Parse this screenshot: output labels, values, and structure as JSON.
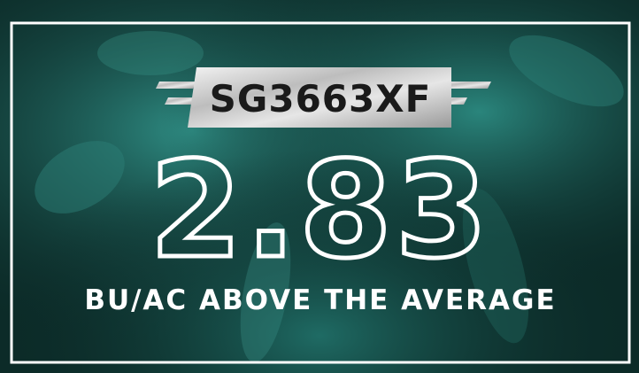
{
  "badge": "SG3663XF",
  "headline": "2.83",
  "subline": "BU/AC ABOVE THE AVERAGE"
}
